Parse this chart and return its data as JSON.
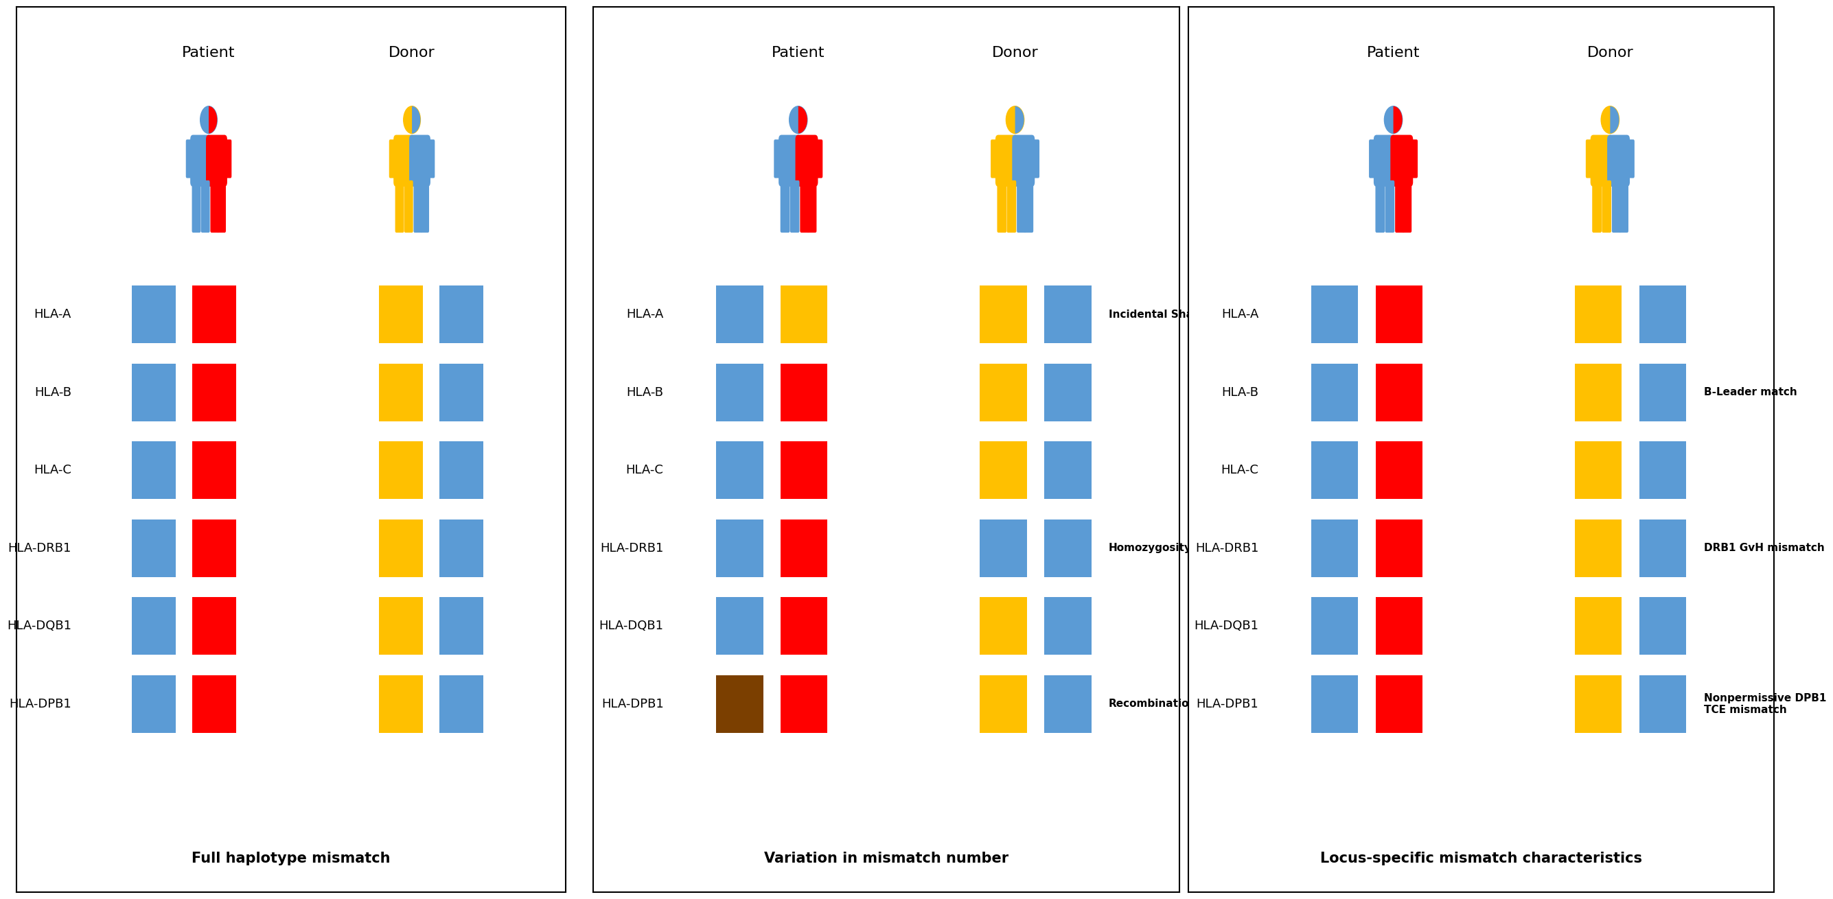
{
  "panel_titles": [
    "Full haplotype mismatch",
    "Variation in mismatch number",
    "Locus-specific mismatch characteristics"
  ],
  "hla_labels": [
    "HLA-A",
    "HLA-B",
    "HLA-C",
    "HLA-DRB1",
    "HLA-DQB1",
    "HLA-DPB1"
  ],
  "colors": {
    "blue": "#5B9BD5",
    "red": "#FF0000",
    "yellow": "#FFC000",
    "brown": "#7B3F00",
    "white": "#FFFFFF",
    "black": "#000000",
    "panel_bg": "#FFFFFF",
    "border": "#000000"
  },
  "panel1": {
    "patient_cols": [
      [
        "blue",
        "red"
      ],
      [
        "blue",
        "red"
      ],
      [
        "blue",
        "red"
      ],
      [
        "blue",
        "red"
      ],
      [
        "blue",
        "red"
      ],
      [
        "blue",
        "red"
      ]
    ],
    "donor_cols": [
      [
        "yellow",
        "blue"
      ],
      [
        "yellow",
        "blue"
      ],
      [
        "yellow",
        "blue"
      ],
      [
        "yellow",
        "blue"
      ],
      [
        "yellow",
        "blue"
      ],
      [
        "yellow",
        "blue"
      ]
    ]
  },
  "panel2": {
    "patient_cols": [
      [
        "blue",
        "yellow"
      ],
      [
        "blue",
        "red"
      ],
      [
        "blue",
        "red"
      ],
      [
        "blue",
        "red"
      ],
      [
        "blue",
        "red"
      ],
      [
        "brown",
        "red"
      ]
    ],
    "donor_cols": [
      [
        "yellow",
        "blue"
      ],
      [
        "yellow",
        "blue"
      ],
      [
        "yellow",
        "blue"
      ],
      [
        "blue",
        "blue"
      ],
      [
        "yellow",
        "blue"
      ],
      [
        "yellow",
        "blue"
      ]
    ],
    "annotations": [
      {
        "row": 0,
        "text": "Incidental Share"
      },
      {
        "row": 3,
        "text": "Homozygosity"
      },
      {
        "row": 5,
        "text": "Recombination"
      }
    ]
  },
  "panel3": {
    "patient_cols": [
      [
        "blue",
        "red"
      ],
      [
        "blue",
        "red"
      ],
      [
        "blue",
        "red"
      ],
      [
        "blue",
        "red"
      ],
      [
        "blue",
        "red"
      ],
      [
        "blue",
        "red"
      ]
    ],
    "donor_cols": [
      [
        "yellow",
        "blue"
      ],
      [
        "yellow",
        "blue"
      ],
      [
        "yellow",
        "blue"
      ],
      [
        "yellow",
        "blue"
      ],
      [
        "yellow",
        "blue"
      ],
      [
        "yellow",
        "blue"
      ]
    ],
    "annotations": [
      {
        "row": 1,
        "text": "B-Leader match"
      },
      {
        "row": 3,
        "text": "DRB1 GvH mismatch"
      },
      {
        "row": 5,
        "text": "Nonpermissive DPB1\nTCE mismatch"
      }
    ]
  },
  "figure_bg": "#FFFFFF"
}
